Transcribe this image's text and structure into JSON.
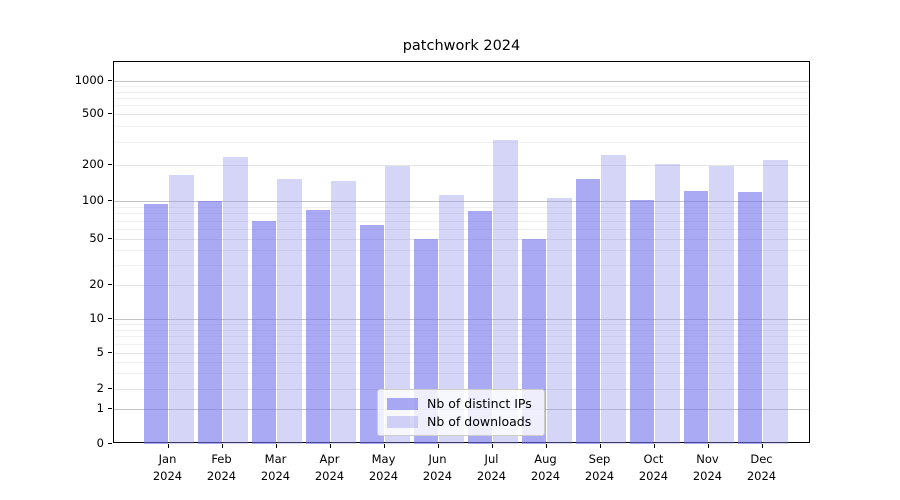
{
  "title": "patchwork 2024",
  "chart_data": {
    "type": "bar",
    "categories": [
      "Jan 2024",
      "Feb 2024",
      "Mar 2024",
      "Apr 2024",
      "May 2024",
      "Jun 2024",
      "Jul 2024",
      "Aug 2024",
      "Sep 2024",
      "Oct 2024",
      "Nov 2024",
      "Dec 2024"
    ],
    "series": [
      {
        "name": "Nb of distinct IPs",
        "values": [
          95,
          100,
          70,
          85,
          65,
          50,
          84,
          50,
          152,
          102,
          122,
          120
        ],
        "color": "rgba(118,118,238,0.62)"
      },
      {
        "name": "Nb of downloads",
        "values": [
          165,
          230,
          152,
          148,
          196,
          113,
          315,
          106,
          241,
          202,
          197,
          218
        ],
        "color": "rgba(150,150,238,0.40)"
      }
    ],
    "title": "patchwork 2024",
    "xlabel": "",
    "ylabel": "",
    "yscale": "symlog",
    "ytick_labels": [
      "0",
      "1",
      "2",
      "5",
      "10",
      "20",
      "50",
      "100",
      "200",
      "500",
      "1000"
    ],
    "yticks": [
      0,
      1,
      2,
      5,
      10,
      20,
      50,
      100,
      200,
      500,
      1000
    ],
    "ylim": [
      0,
      1300
    ],
    "grid": "horizontal",
    "legend_position": "bottom-center"
  },
  "legend": {
    "items": [
      {
        "label": "Nb of distinct IPs",
        "color": "rgba(118,118,238,0.62)"
      },
      {
        "label": "Nb of downloads",
        "color": "rgba(150,150,238,0.40)"
      }
    ]
  }
}
